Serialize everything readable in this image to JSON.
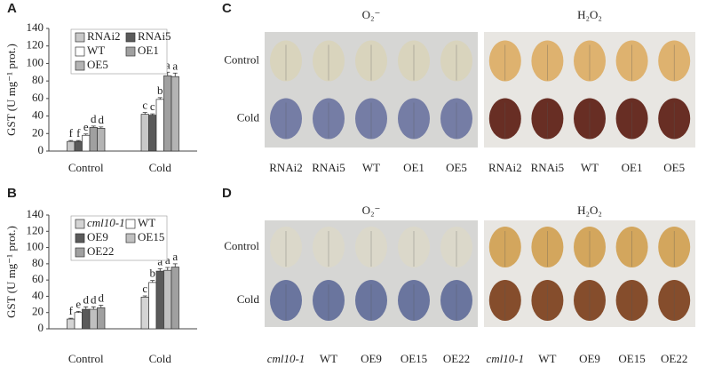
{
  "chart_data": [
    {
      "type": "bar",
      "panel": "A",
      "ylabel": "GST (U mg⁻¹ prot.)",
      "categories": [
        "Control",
        "Cold"
      ],
      "ylim": [
        0,
        140
      ],
      "yticks": [
        0,
        20,
        40,
        60,
        80,
        100,
        120,
        140
      ],
      "series": [
        {
          "name": "RNAi2",
          "color": "#c8c8c8",
          "values": [
            11,
            42
          ],
          "errors": [
            1,
            2
          ],
          "letters": [
            "f",
            "c"
          ]
        },
        {
          "name": "RNAi5",
          "color": "#5a5a5a",
          "values": [
            11,
            41
          ],
          "errors": [
            1,
            1.5
          ],
          "letters": [
            "f",
            "c"
          ]
        },
        {
          "name": "WT",
          "color": "#ffffff",
          "values": [
            18,
            59
          ],
          "errors": [
            1.5,
            2
          ],
          "letters": [
            "e",
            "b"
          ]
        },
        {
          "name": "OE1",
          "color": "#a0a0a0",
          "values": [
            27,
            86
          ],
          "errors": [
            1.5,
            4
          ],
          "letters": [
            "d",
            "a"
          ]
        },
        {
          "name": "OE5",
          "color": "#b4b4b4",
          "values": [
            26,
            85
          ],
          "errors": [
            1.5,
            4
          ],
          "letters": [
            "d",
            "a"
          ]
        }
      ]
    },
    {
      "type": "bar",
      "panel": "B",
      "ylabel": "GST (U mg⁻¹ prot.)",
      "categories": [
        "Control",
        "Cold"
      ],
      "ylim": [
        0,
        140
      ],
      "yticks": [
        0,
        20,
        40,
        60,
        80,
        100,
        120,
        140
      ],
      "series": [
        {
          "name": "cml10-1",
          "color": "#d4d4d4",
          "values": [
            12,
            39
          ],
          "errors": [
            1,
            1.5
          ],
          "letters": [
            "f",
            "c"
          ]
        },
        {
          "name": "WT",
          "color": "#ffffff",
          "values": [
            20,
            57
          ],
          "errors": [
            1.5,
            2.5
          ],
          "letters": [
            "e",
            "b"
          ]
        },
        {
          "name": "OE9",
          "color": "#5a5a5a",
          "values": [
            24,
            71
          ],
          "errors": [
            3,
            3
          ],
          "letters": [
            "d",
            "a"
          ]
        },
        {
          "name": "OE15",
          "color": "#c0c0c0",
          "values": [
            24,
            72
          ],
          "errors": [
            3,
            3.5
          ],
          "letters": [
            "d",
            "a"
          ]
        },
        {
          "name": "OE22",
          "color": "#a0a0a0",
          "values": [
            26,
            76
          ],
          "errors": [
            3,
            4
          ],
          "letters": [
            "d",
            "a"
          ]
        }
      ]
    }
  ],
  "photo_panels": [
    {
      "panel": "C",
      "headers": [
        "O₂⁻",
        "H₂O₂"
      ],
      "rows": [
        "Control",
        "Cold"
      ],
      "columns": [
        [
          "RNAi2",
          "RNAi5",
          "WT",
          "OE1",
          "OE5"
        ],
        [
          "RNAi2",
          "RNAi5",
          "WT",
          "OE1",
          "OE5"
        ]
      ]
    },
    {
      "panel": "D",
      "headers": [
        "O₂⁻",
        "H₂O₂"
      ],
      "rows": [
        "Control",
        "Cold"
      ],
      "columns": [
        [
          "cml10-1",
          "WT",
          "OE9",
          "OE15",
          "OE22"
        ],
        [
          "cml10-1",
          "WT",
          "OE9",
          "OE15",
          "OE22"
        ]
      ]
    }
  ]
}
